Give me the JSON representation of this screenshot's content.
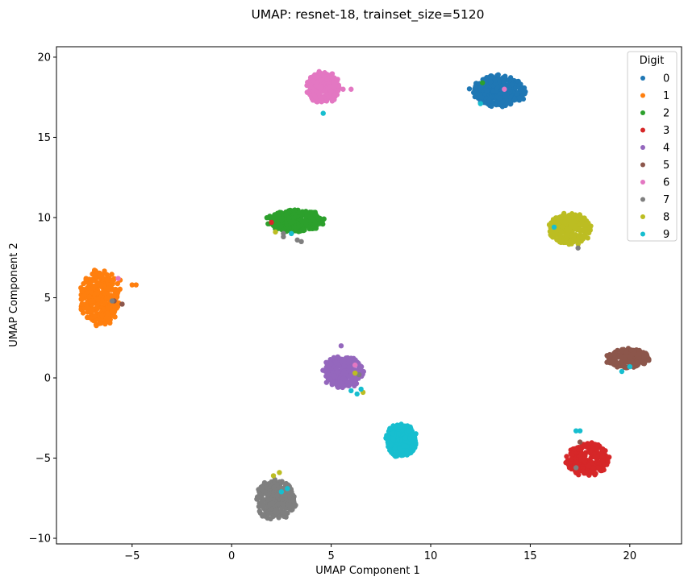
{
  "chart_data": {
    "type": "scatter",
    "title": "UMAP: resnet-18, trainset_size=5120",
    "xlabel": "UMAP Component 1",
    "ylabel": "UMAP Component 2",
    "xlim": [
      -8.8,
      22.6
    ],
    "ylim": [
      -10.35,
      20.65
    ],
    "xticks": [
      -5,
      0,
      5,
      10,
      15,
      20
    ],
    "yticks": [
      -10,
      -5,
      0,
      5,
      10,
      15,
      20
    ],
    "grid": false,
    "legend": {
      "title": "Digit",
      "placement": "top-right"
    },
    "series": [
      {
        "name": "0",
        "color": "#1f77b4",
        "clusters": [
          {
            "cx": 13.4,
            "cy": 17.9,
            "rx": 1.35,
            "ry": 0.95,
            "n": 340
          }
        ],
        "points": [
          [
            12.6,
            18.3
          ],
          [
            12.5,
            17.2
          ]
        ]
      },
      {
        "name": "1",
        "color": "#ff7f0e",
        "clusters": [
          {
            "cx": -6.6,
            "cy": 5.0,
            "rx": 1.0,
            "ry": 1.7,
            "n": 330
          }
        ],
        "points": [
          [
            -5.0,
            5.8
          ],
          [
            -4.8,
            5.8
          ],
          [
            -5.6,
            6.1
          ]
        ]
      },
      {
        "name": "2",
        "color": "#2ca02c",
        "clusters": [
          {
            "cx": 3.2,
            "cy": 9.8,
            "rx": 1.4,
            "ry": 0.65,
            "n": 280
          }
        ],
        "points": [
          [
            12.6,
            18.4
          ]
        ]
      },
      {
        "name": "3",
        "color": "#d62728",
        "clusters": [
          {
            "cx": 17.9,
            "cy": -5.1,
            "rx": 1.05,
            "ry": 1.0,
            "n": 260
          }
        ],
        "points": [
          [
            2.0,
            9.7
          ]
        ]
      },
      {
        "name": "4",
        "color": "#9467bd",
        "clusters": [
          {
            "cx": 5.6,
            "cy": 0.4,
            "rx": 1.0,
            "ry": 1.0,
            "n": 250
          }
        ],
        "points": [
          [
            5.5,
            2.0
          ]
        ]
      },
      {
        "name": "5",
        "color": "#8c564b",
        "clusters": [
          {
            "cx": 19.9,
            "cy": 1.2,
            "rx": 1.05,
            "ry": 0.6,
            "n": 220
          }
        ],
        "points": [
          [
            -5.9,
            4.8
          ],
          [
            -5.5,
            4.6
          ],
          [
            17.5,
            -4.0
          ]
        ]
      },
      {
        "name": "6",
        "color": "#e377c2",
        "clusters": [
          {
            "cx": 4.6,
            "cy": 18.1,
            "rx": 0.8,
            "ry": 0.95,
            "n": 300
          }
        ],
        "points": [
          [
            5.6,
            18.0
          ],
          [
            6.0,
            18.0
          ],
          [
            13.7,
            18.0
          ],
          [
            -5.7,
            6.2
          ],
          [
            6.2,
            0.8
          ]
        ]
      },
      {
        "name": "7",
        "color": "#7f7f7f",
        "clusters": [
          {
            "cx": 2.2,
            "cy": -7.6,
            "rx": 1.0,
            "ry": 1.2,
            "n": 280
          }
        ],
        "points": [
          [
            -6.0,
            4.8
          ],
          [
            2.6,
            8.8
          ],
          [
            3.3,
            8.6
          ],
          [
            3.5,
            8.5
          ],
          [
            17.3,
            -5.6
          ],
          [
            17.4,
            8.1
          ],
          [
            6.4,
            0.2
          ],
          [
            2.6,
            9.0
          ]
        ]
      },
      {
        "name": "8",
        "color": "#bcbd22",
        "clusters": [
          {
            "cx": 17.0,
            "cy": 9.3,
            "rx": 1.05,
            "ry": 0.95,
            "n": 260
          }
        ],
        "points": [
          [
            2.2,
            9.1
          ],
          [
            6.2,
            0.3
          ],
          [
            2.1,
            -6.1
          ],
          [
            2.4,
            -5.9
          ],
          [
            6.6,
            -0.9
          ]
        ]
      },
      {
        "name": "9",
        "color": "#17becf",
        "clusters": [
          {
            "cx": 8.5,
            "cy": -3.9,
            "rx": 0.75,
            "ry": 1.0,
            "n": 260
          }
        ],
        "points": [
          [
            16.2,
            9.4
          ],
          [
            4.6,
            16.5
          ],
          [
            12.5,
            17.1
          ],
          [
            19.6,
            0.4
          ],
          [
            20.0,
            0.7
          ],
          [
            6.0,
            -0.8
          ],
          [
            6.3,
            -1.0
          ],
          [
            6.5,
            -0.7
          ],
          [
            2.5,
            -7.1
          ],
          [
            2.8,
            -6.9
          ],
          [
            3.0,
            9.0
          ],
          [
            17.5,
            -3.3
          ],
          [
            17.3,
            -3.3
          ]
        ]
      }
    ]
  }
}
